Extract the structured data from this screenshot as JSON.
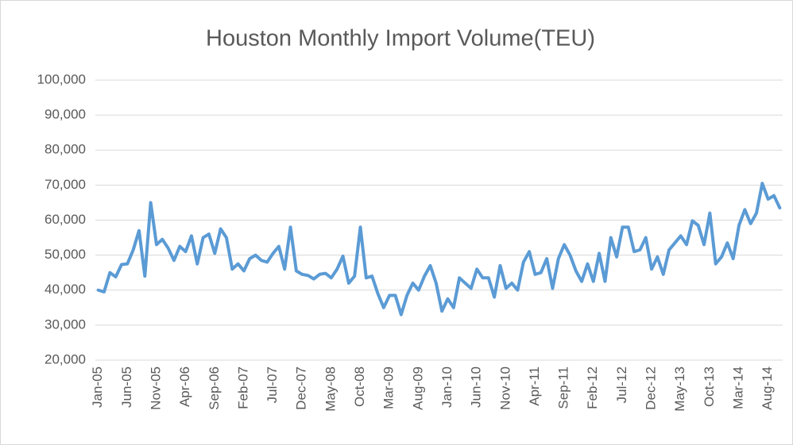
{
  "chart_data": {
    "type": "line",
    "title": "Houston Monthly Import Volume(TEU)",
    "categories": [
      "Jan-05",
      null,
      null,
      null,
      null,
      "Jun-05",
      null,
      null,
      null,
      null,
      "Nov-05",
      null,
      null,
      null,
      null,
      "Apr-06",
      null,
      null,
      null,
      null,
      "Sep-06",
      null,
      null,
      null,
      null,
      "Feb-07",
      null,
      null,
      null,
      null,
      "Jul-07",
      null,
      null,
      null,
      null,
      "Dec-07",
      null,
      null,
      null,
      null,
      "May-08",
      null,
      null,
      null,
      null,
      "Oct-08",
      null,
      null,
      null,
      null,
      "Mar-09",
      null,
      null,
      null,
      null,
      "Aug-09",
      null,
      null,
      null,
      null,
      "Jan-10",
      null,
      null,
      null,
      null,
      "Jun-10",
      null,
      null,
      null,
      null,
      "Nov-10",
      null,
      null,
      null,
      null,
      "Apr-11",
      null,
      null,
      null,
      null,
      "Sep-11",
      null,
      null,
      null,
      null,
      "Feb-12",
      null,
      null,
      null,
      null,
      "Jul-12",
      null,
      null,
      null,
      null,
      "Dec-12",
      null,
      null,
      null,
      null,
      "May-13",
      null,
      null,
      null,
      null,
      "Oct-13",
      null,
      null,
      null,
      null,
      "Mar-14",
      null,
      null,
      null,
      null,
      "Aug-14",
      null,
      null
    ],
    "values": [
      40000,
      39500,
      45000,
      43800,
      47300,
      47500,
      51500,
      57000,
      44000,
      65000,
      53000,
      54500,
      52000,
      48500,
      52500,
      51000,
      55500,
      47500,
      55000,
      56000,
      50500,
      57500,
      55000,
      46000,
      47500,
      45500,
      49000,
      50000,
      48500,
      48000,
      50500,
      52500,
      46000,
      58000,
      45500,
      44500,
      44200,
      43200,
      44500,
      44800,
      43500,
      46000,
      49700,
      42000,
      44000,
      58000,
      43500,
      44000,
      39000,
      35000,
      38500,
      38500,
      33000,
      38500,
      42000,
      40000,
      44000,
      47000,
      42000,
      34000,
      37500,
      35000,
      43500,
      42000,
      40500,
      46000,
      43500,
      43500,
      38000,
      47000,
      40500,
      42000,
      40000,
      48000,
      51000,
      44500,
      45000,
      49000,
      40500,
      49000,
      53000,
      50000,
      45500,
      42500,
      47500,
      42500,
      50500,
      42500,
      55000,
      49500,
      58000,
      58000,
      51000,
      51500,
      55000,
      46000,
      49500,
      44500,
      51500,
      53500,
      55500,
      53000,
      59800,
      58500,
      53000,
      62000,
      47500,
      49500,
      53500,
      49000,
      58500,
      63000,
      59000,
      62000,
      70500,
      66000,
      67000,
      63500
    ],
    "color": "#5b9bd5",
    "ylim": [
      20000,
      100000
    ],
    "yticks": [
      {
        "value": 20000,
        "label": "20,000"
      },
      {
        "value": 30000,
        "label": "30,000"
      },
      {
        "value": 40000,
        "label": "40,000"
      },
      {
        "value": 50000,
        "label": "50,000"
      },
      {
        "value": 60000,
        "label": "60,000"
      },
      {
        "value": 70000,
        "label": "70,000"
      },
      {
        "value": 80000,
        "label": "80,000"
      },
      {
        "value": 90000,
        "label": "90,000"
      },
      {
        "value": 100000,
        "label": "100,000"
      }
    ],
    "grid": true
  }
}
